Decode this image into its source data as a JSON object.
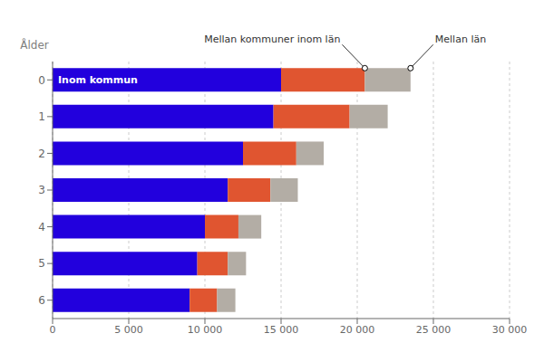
{
  "chart_data": {
    "type": "bar",
    "orientation": "horizontal",
    "stacked": true,
    "ylabel": "Ålder",
    "categories": [
      "0",
      "1",
      "2",
      "3",
      "4",
      "5",
      "6"
    ],
    "series": [
      {
        "name": "Inom kommun",
        "color": "#2200dd",
        "values": [
          15000,
          14500,
          12500,
          11500,
          10000,
          9500,
          9000
        ]
      },
      {
        "name": "Mellan kommuner inom län",
        "color": "#e05530",
        "values": [
          5500,
          5000,
          3500,
          2800,
          2200,
          2000,
          1800
        ]
      },
      {
        "name": "Mellan län",
        "color": "#b3ada5",
        "values": [
          3000,
          2500,
          1800,
          1800,
          1500,
          1200,
          1200
        ]
      }
    ],
    "xlim": [
      0,
      30000
    ],
    "xticks": [
      0,
      {
        "value": 5000,
        "label": "5 000"
      },
      {
        "value": 10000,
        "label": "10 000"
      },
      {
        "value": 15000,
        "label": "15 000"
      },
      {
        "value": 20000,
        "label": "20 000"
      },
      {
        "value": 25000,
        "label": "25 000"
      },
      {
        "value": 30000,
        "label": "30 000"
      }
    ],
    "grid": true
  }
}
